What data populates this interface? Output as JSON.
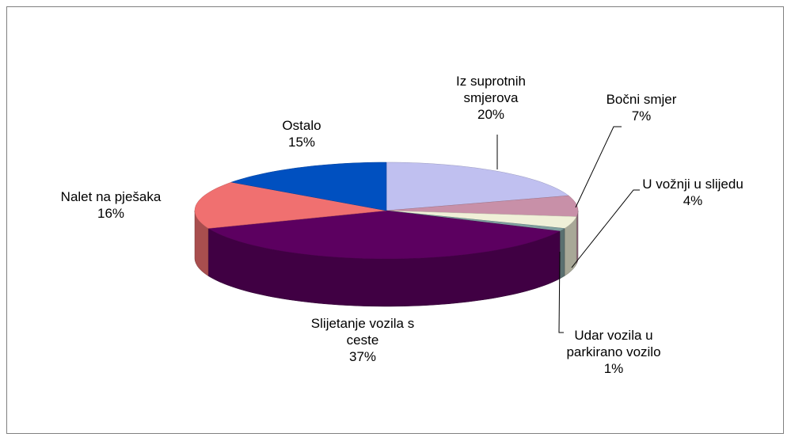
{
  "chart_data": {
    "type": "pie",
    "3d": true,
    "categories": [
      "Iz suprotnih smjerova",
      "Bočni smjer",
      "U vožnji u slijedu",
      "Udar vozila u parkirano vozilo",
      "Slijetanje vozila s ceste",
      "Nalet na pješaka",
      "Ostalo"
    ],
    "values": [
      20,
      7,
      4,
      1,
      37,
      16,
      15
    ],
    "value_labels": [
      "20%",
      "7%",
      "4%",
      "1%",
      "37%",
      "16%",
      "15%"
    ],
    "colors": [
      "#c0c0f0",
      "#c890a8",
      "#f0f0d8",
      "#80a0a0",
      "#5c0060",
      "#f07070",
      "#0050c0"
    ]
  }
}
